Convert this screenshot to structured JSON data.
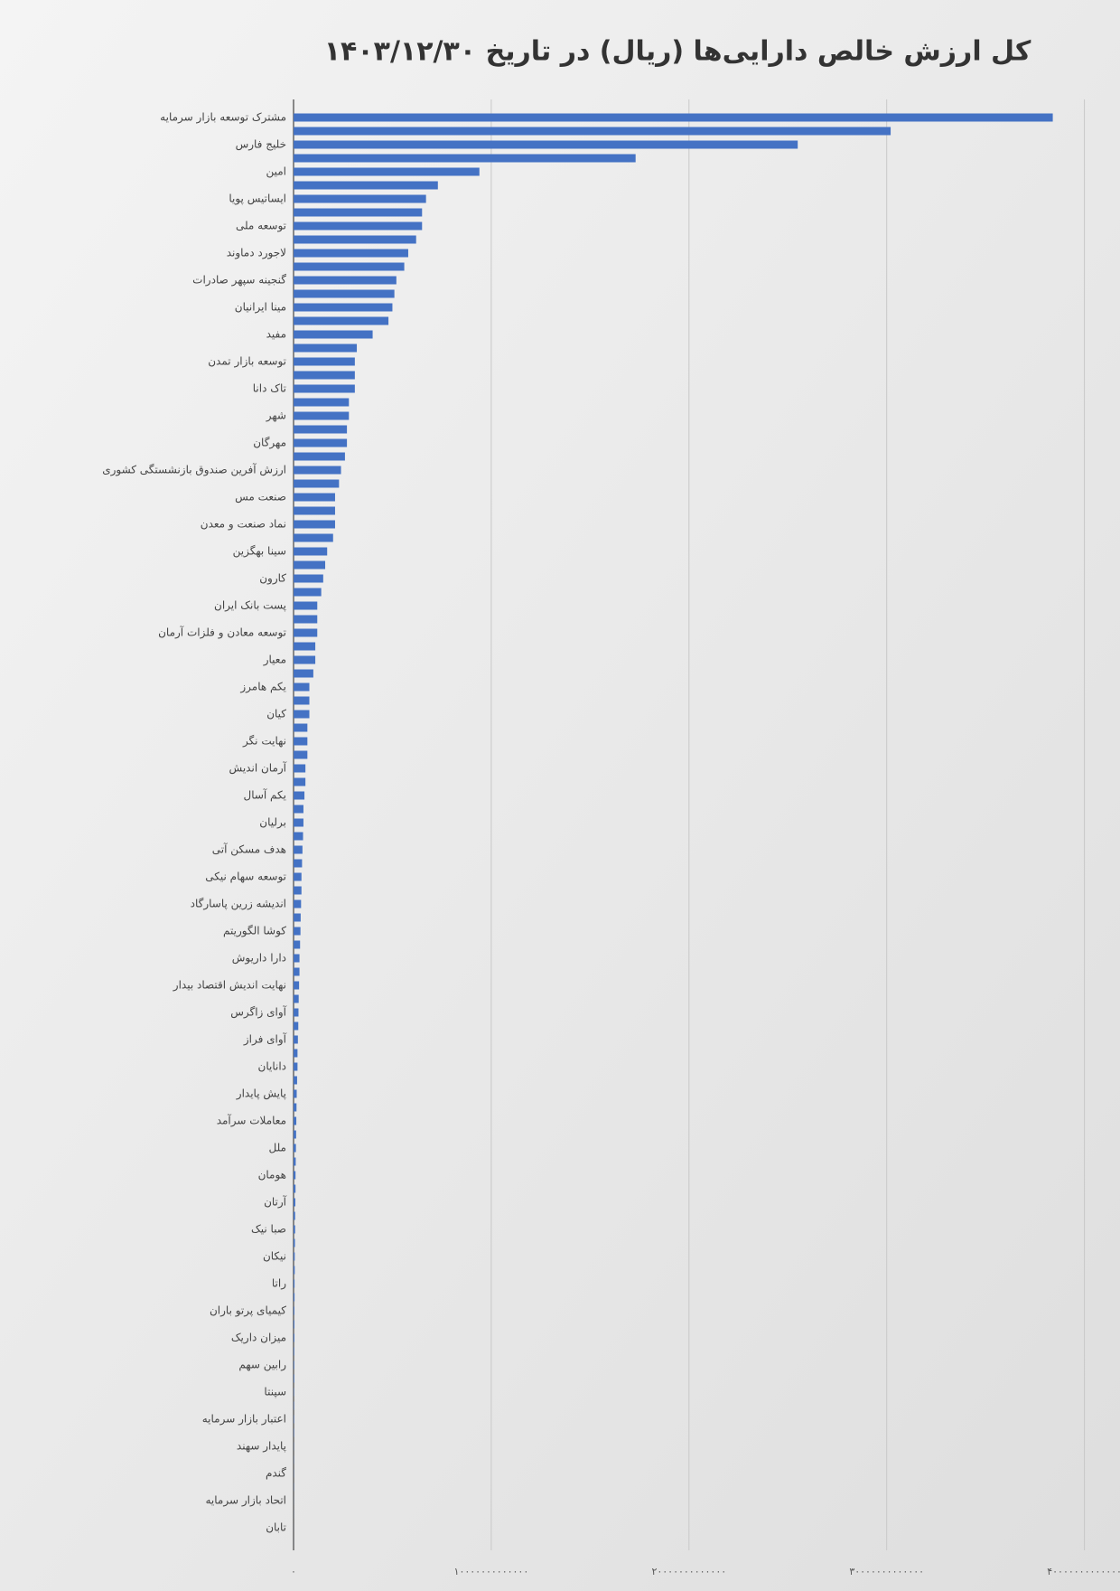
{
  "chart_data": {
    "type": "barh",
    "title": "کل ارزش خالص دارایی‌ها (ریال) در تاریخ ۱۴۰۳/۱۲/۳۰",
    "categories": [
      "مشترک توسعه بازار سرمایه",
      null,
      "خلیج فارس",
      null,
      "امین",
      null,
      "ایساتیس پویا",
      null,
      "توسعه ملی",
      null,
      "لاجورد دماوند",
      null,
      "گنجینه سپهر صادرات",
      null,
      "مینا ایرانیان",
      null,
      "مفید",
      null,
      "توسعه بازار تمدن",
      null,
      "تاک دانا",
      null,
      "شهر",
      null,
      "مهرگان",
      null,
      "ارزش آفرین صندوق بازنشستگی کشوری",
      null,
      "صنعت مس",
      null,
      "نماد صنعت و معدن",
      null,
      "سینا بهگزین",
      null,
      "کارون",
      null,
      "پست بانک ایران",
      null,
      "توسعه معادن و فلزات آرمان",
      null,
      "معیار",
      null,
      "یکم هامرز",
      null,
      "کیان",
      null,
      "نهایت نگر",
      null,
      "آرمان اندیش",
      null,
      "یکم آسال",
      null,
      "برلیان",
      null,
      "هدف مسکن آتی",
      null,
      "توسعه سهام نیکی",
      null,
      "اندیشه زرین پاسارگاد",
      null,
      "کوشا الگوریتم",
      null,
      "دارا داریوش",
      null,
      "نهایت اندیش اقتصاد بیدار",
      null,
      "آوای زاگرس",
      null,
      "آوای فراز",
      null,
      "دانایان",
      null,
      "پایش پایدار",
      null,
      "معاملات سرآمد",
      null,
      "ملل",
      null,
      "هومان",
      null,
      "آرتان",
      null,
      "صبا نیک",
      null,
      "نیکان",
      null,
      "راتا",
      null,
      "کیمیای پرتو باران",
      null,
      "میزان داریک",
      null,
      "رابین سهم",
      null,
      "سپنتا",
      null,
      "اعتبار بازار سرمایه",
      null,
      "پایدار سهند",
      null,
      "گندم",
      null,
      "اتحاد بازار سرمایه",
      null,
      "تابان",
      null
    ],
    "values": [
      38400000000000.0,
      30200000000000.0,
      25500000000000.0,
      17300000000000.0,
      9400000000000.0,
      7300000000000.0,
      6700000000000.0,
      6500000000000.0,
      6500000000000.0,
      6200000000000.0,
      5800000000000.0,
      5600000000000.0,
      5200000000000.0,
      5100000000000.0,
      5000000000000.0,
      4800000000000.0,
      4000000000000.0,
      3200000000000.0,
      3100000000000.0,
      3100000000000.0,
      3100000000000.0,
      2800000000000.0,
      2800000000000.0,
      2700000000000.0,
      2700000000000.0,
      2600000000000.0,
      2400000000000.0,
      2300000000000.0,
      2100000000000.0,
      2100000000000.0,
      2100000000000.0,
      2000000000000.0,
      1700000000000.0,
      1600000000000.0,
      1500000000000.0,
      1400000000000.0,
      1200000000000.0,
      1200000000000.0,
      1200000000000.0,
      1100000000000.0,
      1100000000000.0,
      1000000000000.0,
      800000000000.0,
      800000000000.0,
      800000000000.0,
      700000000000.0,
      700000000000.0,
      700000000000.0,
      600000000000.0,
      600000000000.0,
      550000000000.0,
      500000000000.0,
      500000000000.0,
      480000000000.0,
      450000000000.0,
      430000000000.0,
      400000000000.0,
      400000000000.0,
      380000000000.0,
      360000000000.0,
      350000000000.0,
      330000000000.0,
      300000000000.0,
      300000000000.0,
      280000000000.0,
      260000000000.0,
      250000000000.0,
      240000000000.0,
      220000000000.0,
      200000000000.0,
      200000000000.0,
      180000000000.0,
      160000000000.0,
      150000000000.0,
      140000000000.0,
      130000000000.0,
      120000000000.0,
      110000000000.0,
      100000000000.0,
      100000000000.0,
      90000000000.0,
      80000000000.0,
      80000000000.0,
      70000000000.0,
      60000000000.0,
      60000000000.0,
      50000000000.0,
      50000000000.0,
      40000000000.0,
      40000000000.0,
      40000000000.0,
      30000000000.0,
      30000000000.0,
      30000000000.0,
      20000000000.0,
      20000000000.0,
      20000000000.0,
      20000000000.0,
      10000000000.0,
      10000000000.0,
      10000000000.0,
      10000000000.0,
      5000000000.0,
      5000000000.0,
      3000000000.0,
      2000000000.0
    ],
    "color": "#4472c4",
    "xlim": [
      0,
      41800000000000.0
    ],
    "xticks": [
      {
        "value": 0,
        "label": "۰"
      },
      {
        "value": 10000000000000.0,
        "label": "۱۰۰۰۰۰۰۰۰۰۰۰۰۰"
      },
      {
        "value": 20000000000000.0,
        "label": "۲۰۰۰۰۰۰۰۰۰۰۰۰۰"
      },
      {
        "value": 30000000000000.0,
        "label": "۳۰۰۰۰۰۰۰۰۰۰۰۰۰"
      },
      {
        "value": 40000000000000.0,
        "label": "۴۰۰۰۰۰۰۰۰۰۰۰۰۰"
      }
    ],
    "grid": true
  }
}
